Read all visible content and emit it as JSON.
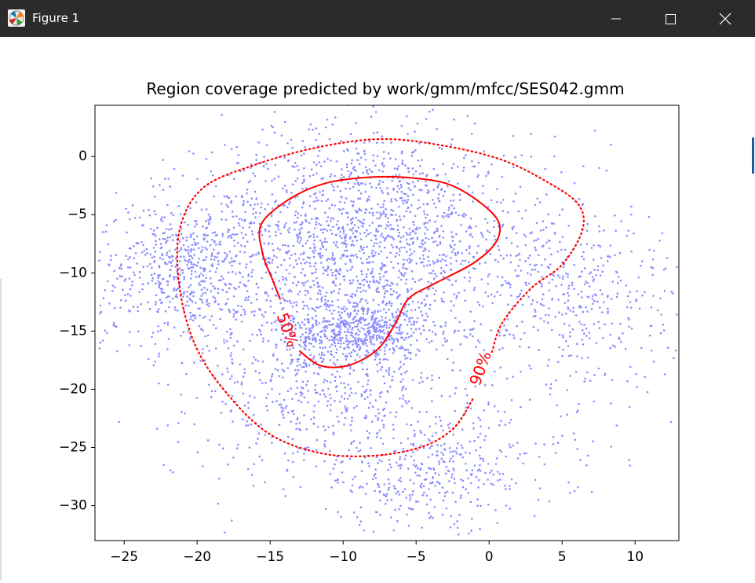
{
  "window": {
    "title": "Figure 1",
    "icons": [
      "matplotlib-icon",
      "minimize-icon",
      "maximize-icon",
      "close-icon"
    ]
  },
  "chart_data": {
    "type": "scatter",
    "title": "Region coverage predicted by work/gmm/mfcc/SES042.gmm",
    "xlabel": "",
    "ylabel": "",
    "xlim": [
      -27,
      13
    ],
    "ylim": [
      -33,
      4.4
    ],
    "xticks": [
      -25,
      -20,
      -15,
      -10,
      -5,
      0,
      5,
      10
    ],
    "yticks": [
      0,
      -5,
      -10,
      -15,
      -20,
      -25,
      -30
    ],
    "xtick_labels": [
      "−25",
      "−20",
      "−15",
      "−10",
      "−5",
      "0",
      "5",
      "10"
    ],
    "ytick_labels": [
      "0",
      "−5",
      "−10",
      "−15",
      "−20",
      "−25",
      "−30"
    ],
    "grid": false,
    "scatter": {
      "color": "#0000ff",
      "count": 4200,
      "clusters": [
        {
          "center": [
            -9,
            -7
          ],
          "spread": [
            5.5,
            4.5
          ],
          "weight": 0.34
        },
        {
          "center": [
            -9,
            -15
          ],
          "spread": [
            2.3,
            1.4
          ],
          "weight": 0.12
        },
        {
          "center": [
            -21,
            -10
          ],
          "spread": [
            3,
            3
          ],
          "weight": 0.12
        },
        {
          "center": [
            -4,
            -27
          ],
          "spread": [
            4.5,
            2.5
          ],
          "weight": 0.1
        },
        {
          "center": [
            -12,
            -20
          ],
          "spread": [
            4,
            3
          ],
          "weight": 0.09
        },
        {
          "center": [
            6,
            -12
          ],
          "spread": [
            3.5,
            4
          ],
          "weight": 0.09
        },
        {
          "center": [
            -8,
            -12
          ],
          "spread": [
            8,
            8
          ],
          "weight": 0.14
        }
      ]
    },
    "contours": [
      {
        "label": "50%",
        "color": "#ff0000",
        "style": "solid",
        "label_at": [
          -13.8,
          -14.9
        ],
        "label_angle": 70,
        "points": [
          [
            -13.0,
            -16.7
          ],
          [
            -11.7,
            -17.9
          ],
          [
            -10.3,
            -18.1
          ],
          [
            -8.9,
            -17.6
          ],
          [
            -7.5,
            -16.4
          ],
          [
            -6.4,
            -14.3
          ],
          [
            -5.5,
            -12.2
          ],
          [
            -3.7,
            -10.9
          ],
          [
            -1.0,
            -9.1
          ],
          [
            0.5,
            -7.3
          ],
          [
            0.6,
            -5.5
          ],
          [
            -1.0,
            -3.6
          ],
          [
            -3.0,
            -2.3
          ],
          [
            -5.7,
            -1.8
          ],
          [
            -8.4,
            -1.8
          ],
          [
            -11.2,
            -2.3
          ],
          [
            -13.6,
            -3.6
          ],
          [
            -15.6,
            -5.8
          ],
          [
            -15.5,
            -8.4
          ],
          [
            -14.8,
            -10.7
          ],
          [
            -14.3,
            -12.3
          ]
        ]
      },
      {
        "label": "90%",
        "color": "#ff0000",
        "style": "dotted",
        "label_at": [
          -0.6,
          -18.2
        ],
        "label_angle": -70,
        "points": [
          [
            0.2,
            -16.8
          ],
          [
            0.9,
            -14.3
          ],
          [
            2.9,
            -11.3
          ],
          [
            5.0,
            -9.3
          ],
          [
            6.4,
            -6.3
          ],
          [
            6.1,
            -4.1
          ],
          [
            4.0,
            -2.2
          ],
          [
            0.9,
            -0.3
          ],
          [
            -3.0,
            0.9
          ],
          [
            -7.3,
            1.5
          ],
          [
            -11.7,
            0.8
          ],
          [
            -16.0,
            -0.7
          ],
          [
            -19.6,
            -2.7
          ],
          [
            -21.2,
            -6.3
          ],
          [
            -21.2,
            -11.3
          ],
          [
            -20.1,
            -16.3
          ],
          [
            -18.0,
            -20.3
          ],
          [
            -15.1,
            -23.8
          ],
          [
            -11.5,
            -25.5
          ],
          [
            -7.8,
            -25.7
          ],
          [
            -4.5,
            -24.9
          ],
          [
            -2.4,
            -23.3
          ],
          [
            -1.1,
            -20.8
          ]
        ]
      }
    ]
  }
}
